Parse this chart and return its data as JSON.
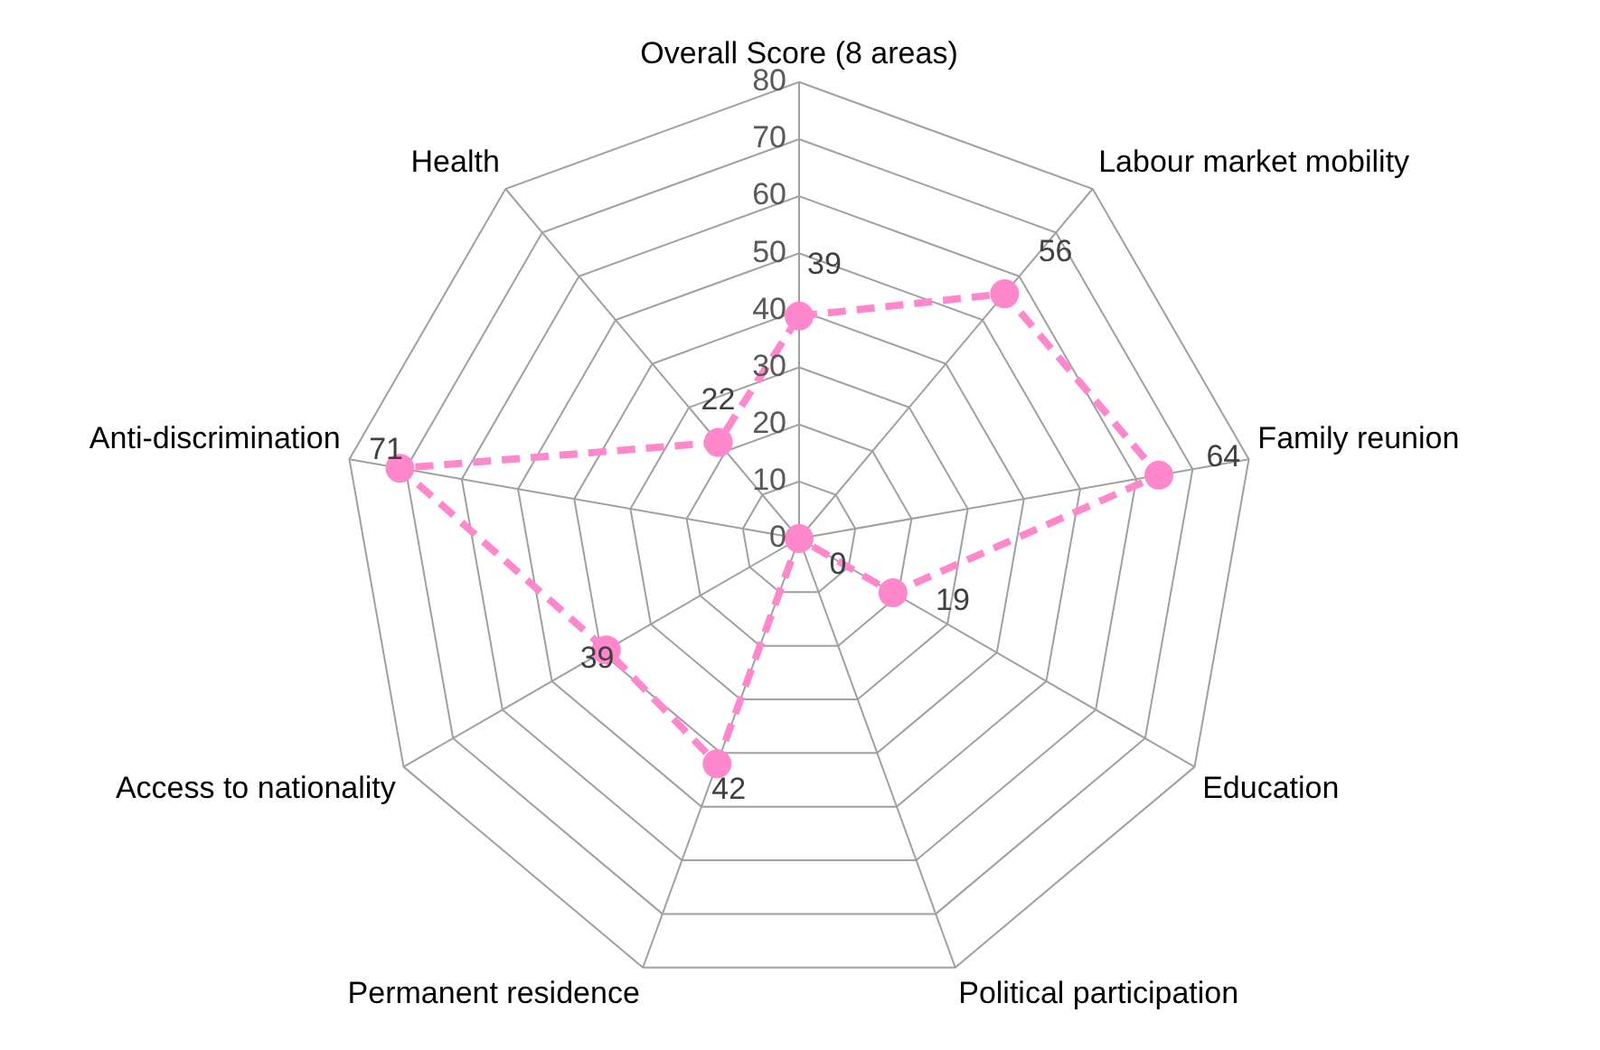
{
  "chart_data": {
    "type": "radar",
    "categories": [
      "Overall Score (8 areas)",
      "Labour market mobility",
      "Family reunion",
      "Education",
      "Political participation",
      "Permanent residence",
      "Access to nationality",
      "Anti-discrimination",
      "Health"
    ],
    "series": [
      {
        "color": "#ff88cc",
        "values": [
          39,
          56,
          64,
          19,
          0,
          42,
          39,
          71,
          22
        ]
      }
    ],
    "ylim": [
      0,
      80
    ],
    "yticks": [
      0,
      10,
      20,
      30,
      40,
      50,
      60,
      70,
      80
    ],
    "grid": true,
    "data_labels": true,
    "marker": "circle",
    "line_style": "dashed"
  }
}
